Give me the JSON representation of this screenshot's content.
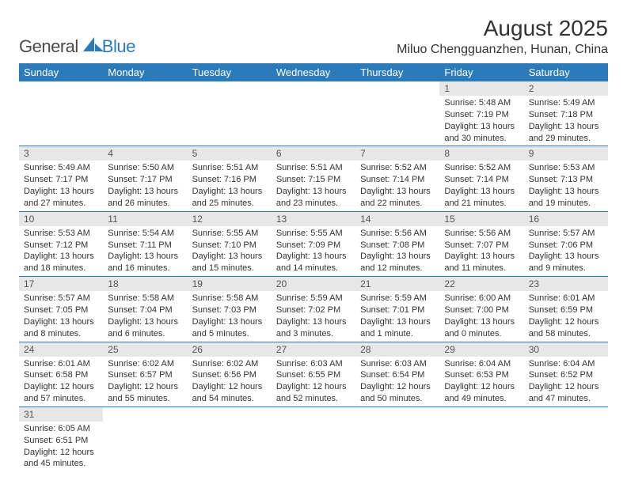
{
  "brand": {
    "general": "General",
    "blue": "Blue"
  },
  "colors": {
    "header_bg": "#2b7bba",
    "header_text": "#ffffff",
    "daynum_bg": "#e7e7e7",
    "border": "#2b7bba",
    "body_text": "#333333"
  },
  "title": "August 2025",
  "location": "Miluo Chengguanzhen, Hunan, China",
  "weekdays": [
    "Sunday",
    "Monday",
    "Tuesday",
    "Wednesday",
    "Thursday",
    "Friday",
    "Saturday"
  ],
  "weeks": [
    [
      null,
      null,
      null,
      null,
      null,
      {
        "n": "1",
        "sunrise": "Sunrise: 5:48 AM",
        "sunset": "Sunset: 7:19 PM",
        "daylight": "Daylight: 13 hours and 30 minutes."
      },
      {
        "n": "2",
        "sunrise": "Sunrise: 5:49 AM",
        "sunset": "Sunset: 7:18 PM",
        "daylight": "Daylight: 13 hours and 29 minutes."
      }
    ],
    [
      {
        "n": "3",
        "sunrise": "Sunrise: 5:49 AM",
        "sunset": "Sunset: 7:17 PM",
        "daylight": "Daylight: 13 hours and 27 minutes."
      },
      {
        "n": "4",
        "sunrise": "Sunrise: 5:50 AM",
        "sunset": "Sunset: 7:17 PM",
        "daylight": "Daylight: 13 hours and 26 minutes."
      },
      {
        "n": "5",
        "sunrise": "Sunrise: 5:51 AM",
        "sunset": "Sunset: 7:16 PM",
        "daylight": "Daylight: 13 hours and 25 minutes."
      },
      {
        "n": "6",
        "sunrise": "Sunrise: 5:51 AM",
        "sunset": "Sunset: 7:15 PM",
        "daylight": "Daylight: 13 hours and 23 minutes."
      },
      {
        "n": "7",
        "sunrise": "Sunrise: 5:52 AM",
        "sunset": "Sunset: 7:14 PM",
        "daylight": "Daylight: 13 hours and 22 minutes."
      },
      {
        "n": "8",
        "sunrise": "Sunrise: 5:52 AM",
        "sunset": "Sunset: 7:14 PM",
        "daylight": "Daylight: 13 hours and 21 minutes."
      },
      {
        "n": "9",
        "sunrise": "Sunrise: 5:53 AM",
        "sunset": "Sunset: 7:13 PM",
        "daylight": "Daylight: 13 hours and 19 minutes."
      }
    ],
    [
      {
        "n": "10",
        "sunrise": "Sunrise: 5:53 AM",
        "sunset": "Sunset: 7:12 PM",
        "daylight": "Daylight: 13 hours and 18 minutes."
      },
      {
        "n": "11",
        "sunrise": "Sunrise: 5:54 AM",
        "sunset": "Sunset: 7:11 PM",
        "daylight": "Daylight: 13 hours and 16 minutes."
      },
      {
        "n": "12",
        "sunrise": "Sunrise: 5:55 AM",
        "sunset": "Sunset: 7:10 PM",
        "daylight": "Daylight: 13 hours and 15 minutes."
      },
      {
        "n": "13",
        "sunrise": "Sunrise: 5:55 AM",
        "sunset": "Sunset: 7:09 PM",
        "daylight": "Daylight: 13 hours and 14 minutes."
      },
      {
        "n": "14",
        "sunrise": "Sunrise: 5:56 AM",
        "sunset": "Sunset: 7:08 PM",
        "daylight": "Daylight: 13 hours and 12 minutes."
      },
      {
        "n": "15",
        "sunrise": "Sunrise: 5:56 AM",
        "sunset": "Sunset: 7:07 PM",
        "daylight": "Daylight: 13 hours and 11 minutes."
      },
      {
        "n": "16",
        "sunrise": "Sunrise: 5:57 AM",
        "sunset": "Sunset: 7:06 PM",
        "daylight": "Daylight: 13 hours and 9 minutes."
      }
    ],
    [
      {
        "n": "17",
        "sunrise": "Sunrise: 5:57 AM",
        "sunset": "Sunset: 7:05 PM",
        "daylight": "Daylight: 13 hours and 8 minutes."
      },
      {
        "n": "18",
        "sunrise": "Sunrise: 5:58 AM",
        "sunset": "Sunset: 7:04 PM",
        "daylight": "Daylight: 13 hours and 6 minutes."
      },
      {
        "n": "19",
        "sunrise": "Sunrise: 5:58 AM",
        "sunset": "Sunset: 7:03 PM",
        "daylight": "Daylight: 13 hours and 5 minutes."
      },
      {
        "n": "20",
        "sunrise": "Sunrise: 5:59 AM",
        "sunset": "Sunset: 7:02 PM",
        "daylight": "Daylight: 13 hours and 3 minutes."
      },
      {
        "n": "21",
        "sunrise": "Sunrise: 5:59 AM",
        "sunset": "Sunset: 7:01 PM",
        "daylight": "Daylight: 13 hours and 1 minute."
      },
      {
        "n": "22",
        "sunrise": "Sunrise: 6:00 AM",
        "sunset": "Sunset: 7:00 PM",
        "daylight": "Daylight: 13 hours and 0 minutes."
      },
      {
        "n": "23",
        "sunrise": "Sunrise: 6:01 AM",
        "sunset": "Sunset: 6:59 PM",
        "daylight": "Daylight: 12 hours and 58 minutes."
      }
    ],
    [
      {
        "n": "24",
        "sunrise": "Sunrise: 6:01 AM",
        "sunset": "Sunset: 6:58 PM",
        "daylight": "Daylight: 12 hours and 57 minutes."
      },
      {
        "n": "25",
        "sunrise": "Sunrise: 6:02 AM",
        "sunset": "Sunset: 6:57 PM",
        "daylight": "Daylight: 12 hours and 55 minutes."
      },
      {
        "n": "26",
        "sunrise": "Sunrise: 6:02 AM",
        "sunset": "Sunset: 6:56 PM",
        "daylight": "Daylight: 12 hours and 54 minutes."
      },
      {
        "n": "27",
        "sunrise": "Sunrise: 6:03 AM",
        "sunset": "Sunset: 6:55 PM",
        "daylight": "Daylight: 12 hours and 52 minutes."
      },
      {
        "n": "28",
        "sunrise": "Sunrise: 6:03 AM",
        "sunset": "Sunset: 6:54 PM",
        "daylight": "Daylight: 12 hours and 50 minutes."
      },
      {
        "n": "29",
        "sunrise": "Sunrise: 6:04 AM",
        "sunset": "Sunset: 6:53 PM",
        "daylight": "Daylight: 12 hours and 49 minutes."
      },
      {
        "n": "30",
        "sunrise": "Sunrise: 6:04 AM",
        "sunset": "Sunset: 6:52 PM",
        "daylight": "Daylight: 12 hours and 47 minutes."
      }
    ],
    [
      {
        "n": "31",
        "sunrise": "Sunrise: 6:05 AM",
        "sunset": "Sunset: 6:51 PM",
        "daylight": "Daylight: 12 hours and 45 minutes."
      },
      null,
      null,
      null,
      null,
      null,
      null
    ]
  ]
}
